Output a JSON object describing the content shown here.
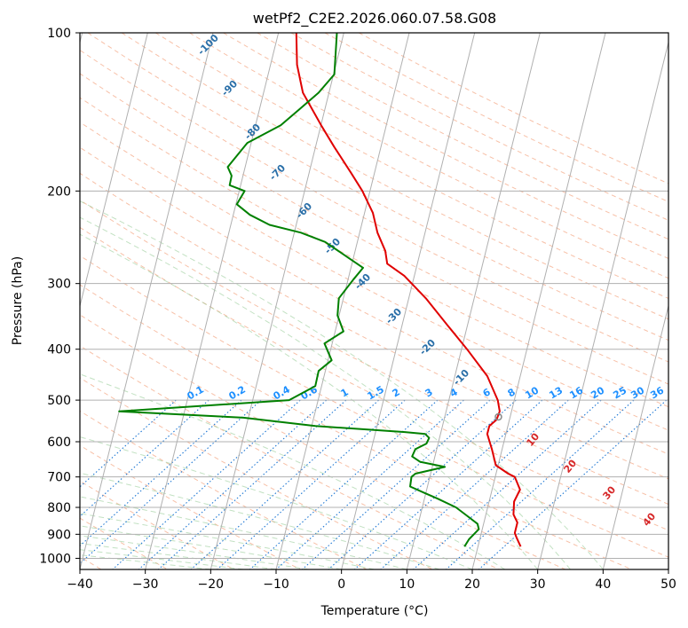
{
  "chart_data": {
    "type": "line",
    "title": "wetPf2_C2E2.2026.060.07.58.G08",
    "xlabel": "Temperature (°C)",
    "ylabel": "Pressure (hPa)",
    "xlim": [
      -40,
      50
    ],
    "ylim": [
      1050,
      100
    ],
    "y_scale": "log",
    "grid": true,
    "x_ticks": [
      -40,
      -30,
      -20,
      -10,
      0,
      10,
      20,
      30,
      40,
      50
    ],
    "y_ticks": [
      100,
      200,
      300,
      400,
      500,
      600,
      700,
      800,
      900,
      1000
    ],
    "series": [
      {
        "color": "#e00000",
        "x": [
          27.4,
          26.8,
          26.5,
          26.9,
          26.3,
          26.4,
          27.3,
          26.5,
          25.5,
          23.6,
          23.0,
          22.3,
          22.6,
          23.7,
          24.2,
          23.9,
          22.3,
          19.2,
          16.2,
          12.9,
          9.6,
          7.0,
          6.7,
          5.5,
          4.8,
          3.2,
          1.5,
          -1.1,
          -3.1,
          -5.9,
          -6.8,
          -6.9
        ],
        "y": [
          950,
          915,
          895,
          855,
          825,
          780,
          740,
          700,
          690,
          665,
          620,
          580,
          560,
          545,
          525,
          500,
          450,
          400,
          360,
          320,
          290,
          275,
          260,
          240,
          220,
          200,
          185,
          165,
          150,
          130,
          115,
          100
        ]
      },
      {
        "color": "#008000",
        "x": [
          18.8,
          19.5,
          21.0,
          20.8,
          19.2,
          17.5,
          14.7,
          12.6,
          10.5,
          10.7,
          11.3,
          15.8,
          12.0,
          10.8,
          11.3,
          13.0,
          13.4,
          12.8,
          9.7,
          5.0,
          -4.0,
          -15.0,
          -34.0,
          -8.0,
          -4.0,
          -3.5,
          -1.5,
          -2.6,
          0.3,
          -0.6,
          -0.4,
          1.8,
          3.3,
          -2.5,
          -6.2,
          -11.0,
          -14.0,
          -16.0,
          -14.8,
          -17.1,
          -16.8,
          -17.4,
          -14.4,
          -9.3,
          -6.5,
          -3.5,
          -1.1,
          -0.9,
          -0.7
        ],
        "y": [
          950,
          920,
          880,
          860,
          830,
          800,
          770,
          750,
          730,
          700,
          690,
          670,
          655,
          640,
          620,
          605,
          590,
          580,
          575,
          570,
          560,
          540,
          525,
          500,
          470,
          440,
          420,
          390,
          370,
          345,
          320,
          295,
          280,
          250,
          240,
          232,
          222,
          212,
          200,
          195,
          187,
          180,
          162,
          150,
          140,
          130,
          120,
          110,
          100
        ]
      }
    ],
    "annotations": {
      "dry_adiabats": [
        "-100",
        "-90",
        "-80",
        "-70",
        "-60",
        "-50",
        "-40",
        "-30",
        "-20",
        "-10"
      ],
      "mixing_ratios": [
        "0.1",
        "0.2",
        "0.4",
        "0.6",
        "1",
        "1.5",
        "2",
        "3",
        "4",
        "6",
        "8",
        "10",
        "13",
        "16",
        "20",
        "25",
        "30",
        "36"
      ],
      "moist_adiabats": [
        "10",
        "20",
        "30",
        "40"
      ]
    }
  }
}
